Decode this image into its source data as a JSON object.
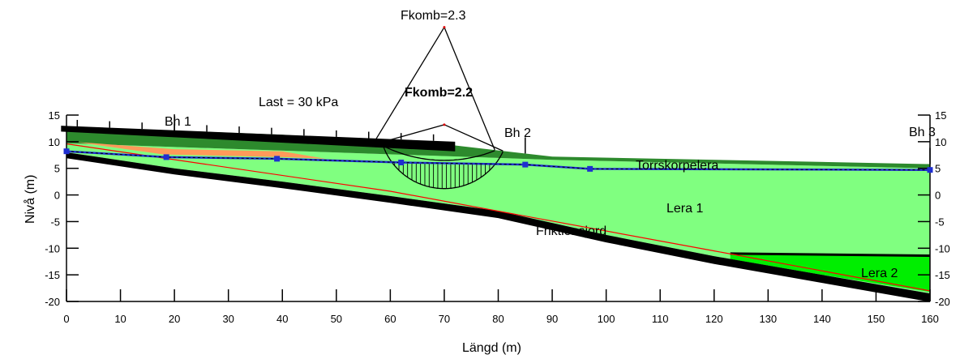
{
  "figure": {
    "xlabel": "Längd (m)",
    "ylabel": "Nivå (m)",
    "xlim": [
      0,
      160
    ],
    "ylim": [
      -20,
      15
    ],
    "x_ticks": [
      "0",
      "10",
      "20",
      "30",
      "40",
      "50",
      "60",
      "70",
      "80",
      "90",
      "100",
      "110",
      "120",
      "130",
      "140",
      "150",
      "160"
    ],
    "y_ticks": [
      "15",
      "10",
      "5",
      "0",
      "-5",
      "-10",
      "-15",
      "-20"
    ],
    "y_ticks_right": [
      "15",
      "10",
      "5",
      "0",
      "-5",
      "-10",
      "-15",
      "-20"
    ]
  },
  "labels": {
    "fkomb_outer": "Fkomb=2.3",
    "fkomb_inner": "Fkomb=2.2",
    "load": "Last = 30 kPa",
    "bh1": "Bh 1",
    "bh2": "Bh 2",
    "bh3": "Bh 3",
    "torrskorpelera": "Torrskorpelera",
    "lera1": "Lera 1",
    "lera2": "Lera 2",
    "friktionsjord": "Friktionsjord"
  },
  "colors": {
    "lera1": "#80ff80",
    "lera2": "#00ee00",
    "torrskorpa": "#2d8a2d",
    "fill_material": "#ff9a5a",
    "ground_water": "#1f2fd0",
    "friction_base": "#000000",
    "red_line": "#ff0000"
  },
  "chart_data": {
    "type": "diagram",
    "title": "",
    "xlabel": "Längd (m)",
    "ylabel": "Nivå (m)",
    "xlim": [
      0,
      160
    ],
    "ylim": [
      -20,
      15
    ],
    "ground_surface": [
      [
        0,
        12.6
      ],
      [
        20,
        12.1
      ],
      [
        40,
        11.3
      ],
      [
        60,
        9.9
      ],
      [
        72,
        9.3
      ],
      [
        90,
        7.2
      ],
      [
        160,
        5.8
      ]
    ],
    "crust_bottom": [
      [
        0,
        9.7
      ],
      [
        90,
        6.6
      ],
      [
        160,
        5.0
      ]
    ],
    "friction_surface": [
      [
        0,
        8.0
      ],
      [
        20,
        5.0
      ],
      [
        40,
        2.5
      ],
      [
        60,
        -0.2
      ],
      [
        80,
        -3.0
      ],
      [
        100,
        -7.5
      ],
      [
        120,
        -11.5
      ],
      [
        140,
        -15.0
      ],
      [
        160,
        -18.5
      ]
    ],
    "lera2_top": [
      [
        123,
        -11.0
      ],
      [
        160,
        -11.4
      ]
    ],
    "groundwater_level": [
      [
        0,
        8.2
      ],
      [
        18.5,
        7.1
      ],
      [
        39,
        6.8
      ],
      [
        62,
        6.1
      ],
      [
        85,
        5.7
      ],
      [
        97,
        4.9
      ],
      [
        160,
        4.7
      ]
    ],
    "load_kPa": 30,
    "load_extent": [
      0,
      72
    ],
    "slip_surfaces": [
      {
        "name": "Fkomb=2.3",
        "center": [
          70,
          31.5
        ],
        "radius": 25
      },
      {
        "name": "Fkomb=2.2",
        "center": [
          70,
          13.2
        ],
        "radius": 12
      }
    ],
    "boreholes": [
      {
        "name": "Bh 1",
        "x": 20
      },
      {
        "name": "Bh 2",
        "x": 85
      },
      {
        "name": "Bh 3",
        "x": 160
      }
    ]
  }
}
